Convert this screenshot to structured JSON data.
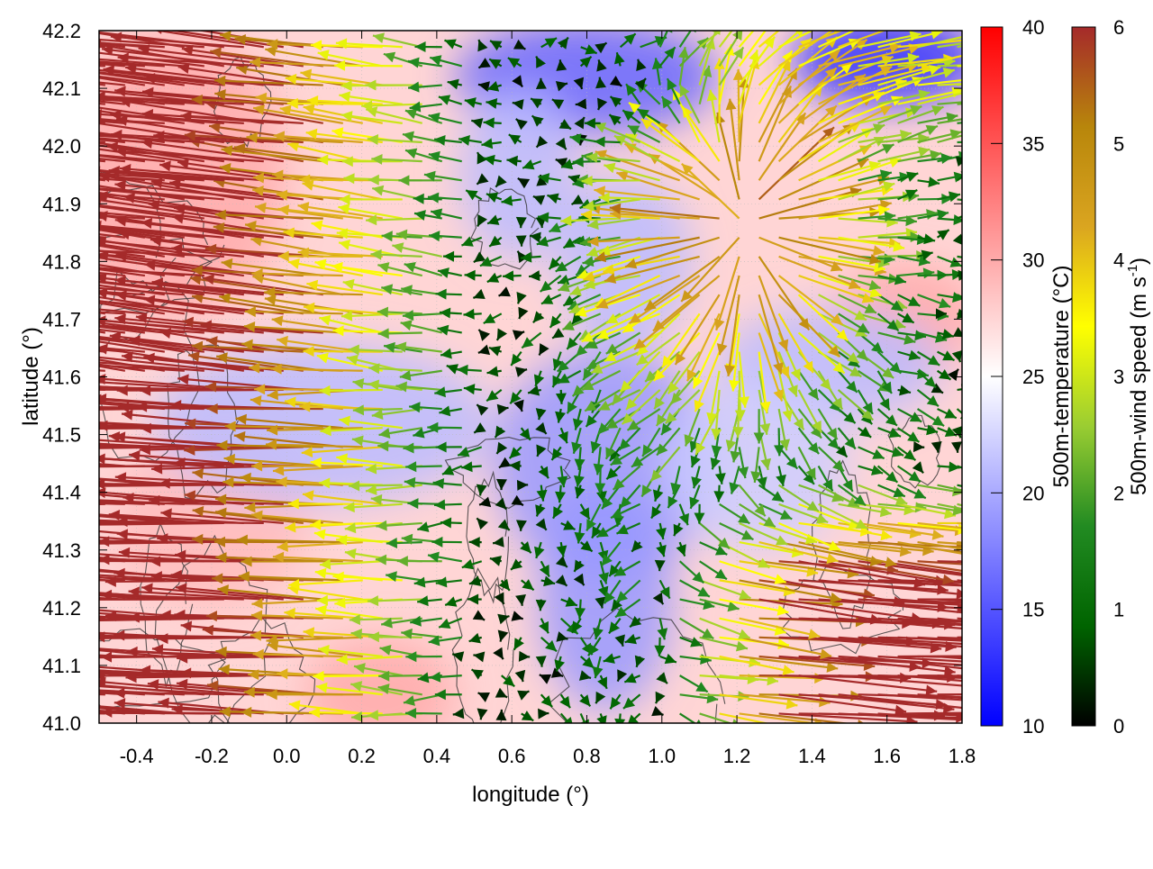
{
  "chart_data": {
    "type": "vector-field",
    "xlabel": "longitude (°)",
    "ylabel": "latitude (°)",
    "xlim": [
      -0.5,
      1.8
    ],
    "ylim": [
      41.0,
      42.2
    ],
    "x_ticks": [
      "-0.4",
      "-0.2",
      "0.0",
      "0.2",
      "0.4",
      "0.6",
      "0.8",
      "1.0",
      "1.2",
      "1.4",
      "1.6",
      "1.8"
    ],
    "x_tick_values": [
      -0.4,
      -0.2,
      0.0,
      0.2,
      0.4,
      0.6,
      0.8,
      1.0,
      1.2,
      1.4,
      1.6,
      1.8
    ],
    "y_ticks": [
      "41.0",
      "41.1",
      "41.2",
      "41.3",
      "41.4",
      "41.5",
      "41.6",
      "41.7",
      "41.8",
      "41.9",
      "42.0",
      "42.1",
      "42.2"
    ],
    "y_tick_values": [
      41.0,
      41.1,
      41.2,
      41.3,
      41.4,
      41.5,
      41.6,
      41.7,
      41.8,
      41.9,
      42.0,
      42.1,
      42.2
    ],
    "background_field": {
      "name": "500m-temperature",
      "units": "°C",
      "colorbar_label": "500m-temperature (°C)",
      "range": [
        10,
        40
      ],
      "ticks": [
        "10",
        "15",
        "20",
        "25",
        "30",
        "35",
        "40"
      ],
      "tick_values": [
        10,
        15,
        20,
        25,
        30,
        35,
        40
      ],
      "colors": [
        "#0000ff",
        "#ffffff",
        "#ff0000"
      ],
      "mid_value": 25,
      "cold_regions": [
        {
          "lon": 0.8,
          "lat": 42.12,
          "rlon": 0.35,
          "rlat": 0.1,
          "value": 16
        },
        {
          "lon": 1.6,
          "lat": 42.15,
          "rlon": 0.25,
          "rlat": 0.08,
          "value": 13
        },
        {
          "lon": 0.62,
          "lat": 41.95,
          "rlon": 0.16,
          "rlat": 0.15,
          "value": 21
        },
        {
          "lon": 0.9,
          "lat": 41.8,
          "rlon": 0.18,
          "rlat": 0.15,
          "value": 21
        },
        {
          "lon": 0.85,
          "lat": 41.45,
          "rlon": 0.3,
          "rlat": 0.2,
          "value": 19
        },
        {
          "lon": 0.85,
          "lat": 41.22,
          "rlon": 0.18,
          "rlat": 0.2,
          "value": 19
        },
        {
          "lon": 0.1,
          "lat": 41.52,
          "rlon": 0.45,
          "rlat": 0.14,
          "value": 21
        },
        {
          "lon": 1.45,
          "lat": 41.62,
          "rlon": 0.3,
          "rlat": 0.1,
          "value": 21
        },
        {
          "lon": 1.25,
          "lat": 41.45,
          "rlon": 0.25,
          "rlat": 0.15,
          "value": 22
        }
      ],
      "warm_regions": [
        {
          "lon": -0.3,
          "lat": 41.95,
          "rlon": 0.3,
          "rlat": 0.25,
          "value": 30
        },
        {
          "lon": 0.25,
          "lat": 41.05,
          "rlon": 0.2,
          "rlat": 0.1,
          "value": 30
        },
        {
          "lon": 1.65,
          "lat": 41.7,
          "rlon": 0.2,
          "rlat": 0.1,
          "value": 30
        },
        {
          "lon": -0.2,
          "lat": 41.35,
          "rlon": 0.25,
          "rlat": 0.15,
          "value": 29
        }
      ]
    },
    "vector_field": {
      "name": "500m-wind speed",
      "units": "m s-1",
      "colorbar_label": "500m-wind speed (m s",
      "colorbar_label_sup": "-1",
      "colorbar_label_end": ")",
      "range": [
        0,
        6
      ],
      "ticks": [
        "0",
        "1",
        "2",
        "3",
        "4",
        "5",
        "6"
      ],
      "tick_values": [
        0,
        1,
        2,
        3,
        4,
        5,
        6
      ],
      "colors": [
        "#000000",
        "#006400",
        "#228b22",
        "#9acd32",
        "#ffff00",
        "#daa520",
        "#b8860b",
        "#a52a2a"
      ],
      "grid_spacing_deg": 0.033,
      "max_length_deg": 0.4,
      "flow_description": "strong westward/north-westward flow on the west, convergence toward a cold band near lon 0.8-1.0, strong eastward flow in the south-east, radial outflow near lon 1.2 lat 41.85"
    },
    "contours": {
      "description": "terrain height contour lines (dark grey)",
      "color": "#333333"
    }
  }
}
